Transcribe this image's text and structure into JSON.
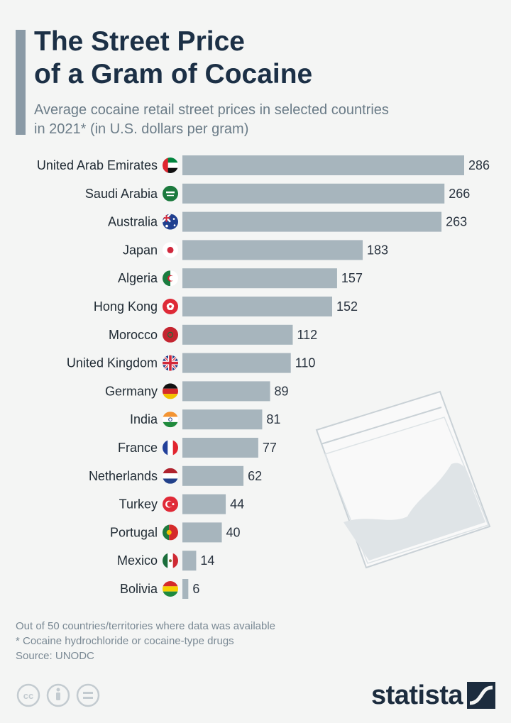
{
  "header": {
    "title_line1": "The Street Price",
    "title_line2": "of a Gram of Cocaine",
    "subtitle_line1": "Average cocaine retail street prices in selected countries",
    "subtitle_line2": "in 2021* (in U.S. dollars per gram)"
  },
  "chart_data": {
    "type": "bar",
    "orientation": "horizontal",
    "title": "The Street Price of a Gram of Cocaine",
    "subtitle": "Average cocaine retail street prices in selected countries in 2021* (in U.S. dollars per gram)",
    "unit": "U.S. dollars per gram",
    "categories": [
      "United Arab Emirates",
      "Saudi Arabia",
      "Australia",
      "Japan",
      "Algeria",
      "Hong Kong",
      "Morocco",
      "United Kingdom",
      "Germany",
      "India",
      "France",
      "Netherlands",
      "Turkey",
      "Portugal",
      "Mexico",
      "Bolivia"
    ],
    "values": [
      286,
      266,
      263,
      183,
      157,
      152,
      112,
      110,
      89,
      81,
      77,
      62,
      44,
      40,
      14,
      6
    ],
    "flags": [
      "uae-flag-icon",
      "saudi-arabia-flag-icon",
      "australia-flag-icon",
      "japan-flag-icon",
      "algeria-flag-icon",
      "hong-kong-flag-icon",
      "morocco-flag-icon",
      "united-kingdom-flag-icon",
      "germany-flag-icon",
      "india-flag-icon",
      "france-flag-icon",
      "netherlands-flag-icon",
      "turkey-flag-icon",
      "portugal-flag-icon",
      "mexico-flag-icon",
      "bolivia-flag-icon"
    ],
    "bar_color": "#a7b5bd",
    "xlim": [
      0,
      290
    ],
    "grid": false
  },
  "footer": {
    "note1": "Out of 50 countries/territories where data was available",
    "note2": "* Cocaine hydrochloride or cocaine-type drugs",
    "source": "Source: UNODC"
  },
  "brand": {
    "logo_text": "statista",
    "license_icons": [
      "creative-commons-icon",
      "attribution-icon",
      "no-derivatives-icon"
    ]
  },
  "colors": {
    "background": "#f4f5f4",
    "title": "#1c3046",
    "subtitle": "#6b7c88",
    "accent_bar": "#8a9aa6"
  }
}
